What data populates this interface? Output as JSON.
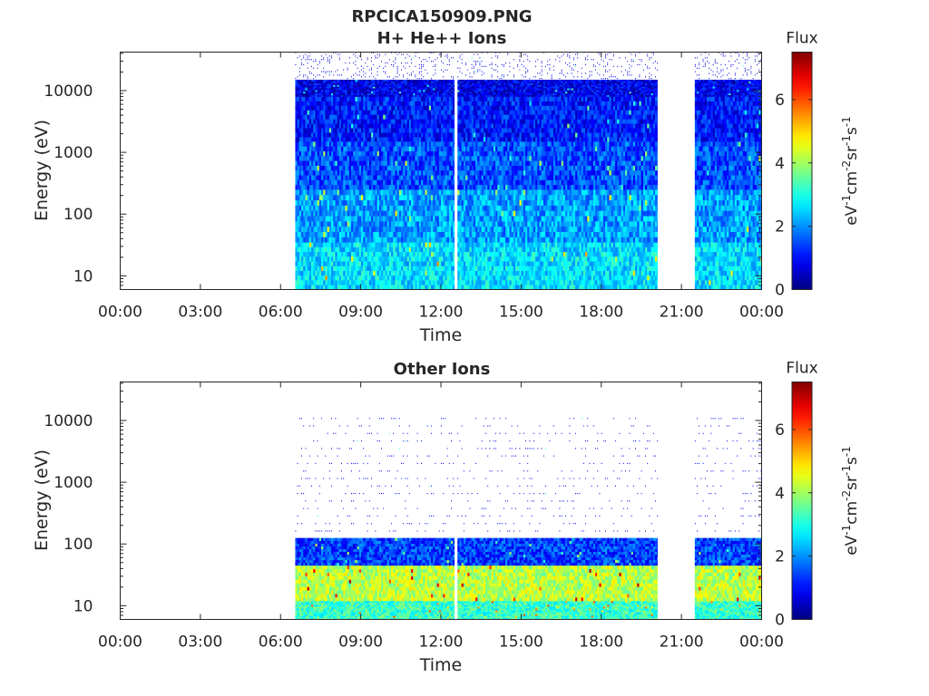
{
  "figure": {
    "title_line1": "RPCICA150909.PNG",
    "title_line2": "H+ He++ Ions"
  },
  "colormap": "jet",
  "colorbar": {
    "title": "Flux",
    "label_main": "eV",
    "label_parts": [
      {
        "t": "eV",
        "sup": false
      },
      {
        "t": "-1",
        "sup": true
      },
      {
        "t": "cm",
        "sup": false
      },
      {
        "t": "-2",
        "sup": true
      },
      {
        "t": "sr",
        "sup": false
      },
      {
        "t": "-1",
        "sup": true
      },
      {
        "t": "s",
        "sup": false
      },
      {
        "t": "-1",
        "sup": true
      }
    ],
    "ticks": [
      "0",
      "2",
      "4",
      "6"
    ],
    "tick_values": [
      0,
      2,
      4,
      6
    ],
    "range": [
      0,
      7.5
    ]
  },
  "chart_data": [
    {
      "type": "heatmap",
      "title": "",
      "xlabel": "Time",
      "ylabel": "Energy (eV)",
      "x_ticks": [
        "00:00",
        "03:00",
        "06:00",
        "09:00",
        "12:00",
        "15:00",
        "18:00",
        "21:00",
        "00:00"
      ],
      "x_tick_hours": [
        0,
        3,
        6,
        9,
        12,
        15,
        18,
        21,
        24
      ],
      "xlim_hours": [
        0,
        24
      ],
      "y_scale": "log",
      "y_ticks": [
        "10",
        "100",
        "1000",
        "10000"
      ],
      "y_tick_values": [
        10,
        100,
        1000,
        10000
      ],
      "ylim": [
        6,
        42000
      ],
      "data_intervals_hours": [
        [
          6.55,
          12.5
        ],
        [
          12.62,
          20.1
        ],
        [
          21.5,
          24.0
        ]
      ],
      "energy_bands": [
        {
          "e_min": 6,
          "e_max": 35,
          "flux_mean": 2.6
        },
        {
          "e_min": 35,
          "e_max": 250,
          "flux_mean": 2.1
        },
        {
          "e_min": 250,
          "e_max": 1500,
          "flux_mean": 1.5
        },
        {
          "e_min": 1500,
          "e_max": 8000,
          "flux_mean": 1.1
        },
        {
          "e_min": 8000,
          "e_max": 15000,
          "flux_mean": 0.8
        },
        {
          "e_min": 15000,
          "e_max": 42000,
          "flux_mean": 0.7,
          "sparse": true
        }
      ]
    },
    {
      "type": "heatmap",
      "title": "Other Ions",
      "xlabel": "Time",
      "ylabel": "Energy (eV)",
      "x_ticks": [
        "00:00",
        "03:00",
        "06:00",
        "09:00",
        "12:00",
        "15:00",
        "18:00",
        "21:00",
        "00:00"
      ],
      "x_tick_hours": [
        0,
        3,
        6,
        9,
        12,
        15,
        18,
        21,
        24
      ],
      "xlim_hours": [
        0,
        24
      ],
      "y_scale": "log",
      "y_ticks": [
        "10",
        "100",
        "1000",
        "10000"
      ],
      "y_tick_values": [
        10,
        100,
        1000,
        10000
      ],
      "ylim": [
        6,
        42000
      ],
      "data_intervals_hours": [
        [
          6.55,
          12.5
        ],
        [
          12.62,
          20.1
        ],
        [
          21.5,
          24.0
        ]
      ],
      "energy_bands": [
        {
          "e_min": 6,
          "e_max": 12,
          "flux_mean": 3.2
        },
        {
          "e_min": 12,
          "e_max": 45,
          "flux_mean": 4.2
        },
        {
          "e_min": 45,
          "e_max": 125,
          "flux_mean": 1.4
        },
        {
          "e_min": 125,
          "e_max": 11000,
          "flux_mean": 0.9,
          "sparse": true
        }
      ]
    }
  ]
}
